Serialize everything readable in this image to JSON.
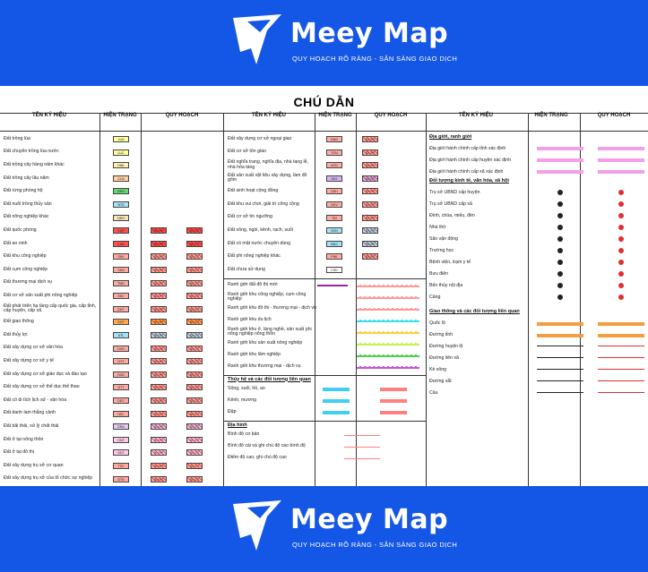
{
  "brand": {
    "name": "Meey Map",
    "slogan": "QUY HOẠCH RÕ RÀNG - SẴN SÀNG GIAO DỊCH"
  },
  "legend_title": "CHÚ DẪN",
  "headers": {
    "col1_name": "TÊN KÝ HIỆU",
    "col1_current": "HIỆN TRẠNG",
    "col1_plan": "QUY HOẠCH",
    "col2_name": "TÊN KÝ HIỆU",
    "col2_current": "HIỆN TRẠNG",
    "col2_plan": "QUY HOẠCH",
    "col3_name": "TÊN KÝ HIỆU",
    "col3_current": "HIỆN TRẠNG",
    "col3_plan": "QUY HOẠCH"
  },
  "col1": [
    {
      "label": "Đất trồng lúa",
      "code": "LUA",
      "color": "#fffe9c"
    },
    {
      "label": "Đất chuyên trồng lúa nước",
      "code": "LUC",
      "color": "#fffe9c"
    },
    {
      "label": "Đất trồng cây hàng năm khác",
      "code": "HNK",
      "color": "#fff0b4"
    },
    {
      "label": "Đất trồng cây lâu năm",
      "code": "CLN",
      "color": "#ffd0a0"
    },
    {
      "label": "Đất rừng phòng hộ",
      "code": "RPH",
      "color": "#66d96e"
    },
    {
      "label": "Đất nuôi trồng thủy sản",
      "code": "NTS",
      "color": "#a4e4f7"
    },
    {
      "label": "Đất nông nghiệp khác",
      "code": "NKH",
      "color": "#f9e4b7"
    },
    {
      "label": "Đất quốc phòng",
      "code": "CQP",
      "color": "#ff5050"
    },
    {
      "label": "Đất an ninh",
      "code": "CAN",
      "color": "#ff5050"
    },
    {
      "label": "Đất khu công nghiệp",
      "code": "SKK",
      "color": "#ffaaa0"
    },
    {
      "label": "Đất cụm công nghiệp",
      "code": "SKN",
      "color": "#ffaaa0"
    },
    {
      "label": "Đất thương mại dịch vụ",
      "code": "TMD",
      "color": "#ffaaa0"
    },
    {
      "label": "Đất cơ sở sản xuất phi nông nghiệp",
      "code": "SKC",
      "color": "#ffaaa0"
    },
    {
      "label": "Đất phát triển hạ tầng cấp quốc gia, cấp tỉnh, cấp huyện, cấp xã",
      "code": "DHT",
      "color": "#ffaaa0"
    },
    {
      "label": "Đất giao thông",
      "code": "DGT",
      "color": "#ffaa50"
    },
    {
      "label": "Đất thủy lợi",
      "code": "DTL",
      "color": "#a4e4f7"
    },
    {
      "label": "Đất xây dựng cơ sở văn hóa",
      "code": "DVH",
      "color": "#ffaaa0"
    },
    {
      "label": "Đất xây dựng cơ sở y tế",
      "code": "DYT",
      "color": "#ffaaa0"
    },
    {
      "label": "Đất xây dựng cơ sở giáo dục và đào tạo",
      "code": "DGD",
      "color": "#ffaaa0"
    },
    {
      "label": "Đất xây dựng cơ sở thể dục thể thao",
      "code": "DTT",
      "color": "#ffaaa0"
    },
    {
      "label": "Đất có di tích lịch sử - văn hóa",
      "code": "DDT",
      "color": "#ffaaa0"
    },
    {
      "label": "Đất danh lam thắng cảnh",
      "code": "DDL",
      "color": "#ffaaa0"
    },
    {
      "label": "Đất bãi thải, xử lý chất thải",
      "code": "DRA",
      "color": "#e6c8f0"
    },
    {
      "label": "Đất ở tại nông thôn",
      "code": "ONT",
      "color": "#ffc8e6"
    },
    {
      "label": "Đất ở tại đô thị",
      "code": "ODT",
      "color": "#ffc8e6"
    },
    {
      "label": "Đất xây dựng trụ sở cơ quan",
      "code": "TSC",
      "color": "#ffaaa0"
    },
    {
      "label": "Đất xây dựng trụ sở của tổ chức sự nghiệp",
      "code": "DTS",
      "color": "#ffaaa0"
    }
  ],
  "col2": [
    {
      "label": "Đất xây dựng cơ sở ngoại giao",
      "code": "DNG",
      "color": "#ffaaa0"
    },
    {
      "label": "Đất cơ sở tôn giáo",
      "code": "TON",
      "color": "#ffaaa0"
    },
    {
      "label": "Đất nghĩa trang, nghĩa địa, nhà tang lễ, nhà hỏa táng",
      "code": "NTD",
      "color": "#ffaaa0"
    },
    {
      "label": "Đất sản xuất vật liệu xây dựng, làm đồ gốm",
      "code": "SKX",
      "color": "#d2b4f0"
    },
    {
      "label": "Đất sinh hoạt cộng đồng",
      "code": "DSH",
      "color": "#ffaaa0"
    },
    {
      "label": "Đất khu vui chơi, giải trí công cộng",
      "code": "DKV",
      "color": "#ffaaa0"
    },
    {
      "label": "Đất cơ sở tín ngưỡng",
      "code": "TIN",
      "color": "#ffaaa0"
    },
    {
      "label": "Đất sông, ngòi, kênh, rạch, suối",
      "code": "SON",
      "color": "#a4e4f7"
    },
    {
      "label": "Đất có mặt nước chuyên dùng",
      "code": "MNC",
      "color": "#a4e4f7"
    },
    {
      "label": "Đất phi nông nghiệp khác",
      "code": "PNK",
      "color": "#ffaaa0"
    },
    {
      "label": "Đất chưa sử dụng",
      "code": "CSD",
      "color": "#ffffff"
    }
  ],
  "col2_lines": [
    {
      "label": "Ranh giới đất đô thị mới",
      "current": "#a020a0",
      "plan": "#ff9a9a"
    },
    {
      "label": "Ranh giới khu công nghiệp, cụm công nghiệp",
      "current": "",
      "plan": "#ff9a9a"
    },
    {
      "label": "Ranh giới khu đô thị - thương mại - dịch vụ",
      "current": "",
      "plan": "#ff9a9a"
    },
    {
      "label": "Ranh giới khu du lịch",
      "current": "",
      "plan": "#40e0e8"
    },
    {
      "label": "Ranh giới khu ở, làng nghề, sản xuất phi nông nghiệp nông thôn",
      "current": "",
      "plan": "#ffd040"
    },
    {
      "label": "Ranh giới khu sản xuất nông nghiệp",
      "current": "",
      "plan": "#c8f050"
    },
    {
      "label": "Ranh giới khu lâm nghiệp",
      "current": "",
      "plan": "#50d050"
    },
    {
      "label": "Ranh giới khu thương mại - dịch vụ",
      "current": "",
      "plan": "#c850e0"
    }
  ],
  "col2_water": {
    "section": "Thủy hệ và các đối tượng liên quan",
    "items": [
      "Sông, suối, hồ, ao",
      "Kênh, mương",
      "Đập"
    ]
  },
  "col2_terrain": {
    "section": "Địa hình",
    "items": [
      "Bình độ cơ bản",
      "Bình độ cái và ghi chú độ cao bình độ",
      "Điểm độ cao, ghi chú độ cao"
    ]
  },
  "col3_boundary": {
    "section": "Địa giới, ranh giới",
    "items": [
      "Địa giới hành chính cấp tỉnh xác định",
      "Địa giới hành chính cấp huyện xác định",
      "Địa giới hành chính cấp xã xác định"
    ]
  },
  "col3_econ": {
    "section": "Đối tượng kinh tế, văn hóa, xã hội",
    "items": [
      "Trụ sở UBND cấp huyện",
      "Trụ sở UBND cấp xã",
      "Đình, chùa, miếu, đền",
      "Nhà thờ",
      "Sân vận động",
      "Trường học",
      "Bệnh viện, trạm y tế",
      "Bưu điện",
      "Bến thủy nội địa",
      "Cảng"
    ]
  },
  "col3_transport": {
    "section": "Giao thông và các đối tượng liên quan",
    "items": [
      "Quốc lộ",
      "Đường tỉnh",
      "Đường huyện lộ",
      "Đường liên xã",
      "Kè sông",
      "Đường sắt",
      "Cầu"
    ]
  }
}
